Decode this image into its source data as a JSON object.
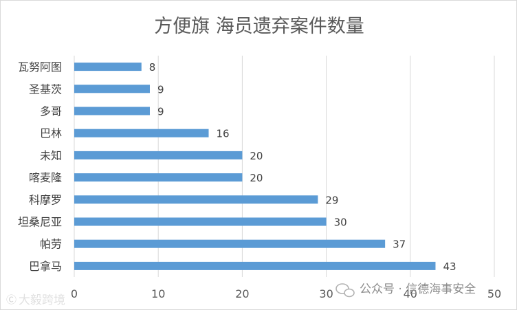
{
  "chart_data": {
    "type": "bar",
    "orientation": "horizontal",
    "title": "方便旗 海员遗弃案件数量",
    "categories": [
      "瓦努阿图",
      "圣基茨",
      "多哥",
      "巴林",
      "未知",
      "喀麦隆",
      "科摩罗",
      "坦桑尼亚",
      "帕劳",
      "巴拿马"
    ],
    "values": [
      8,
      9,
      9,
      16,
      20,
      20,
      29,
      30,
      37,
      43
    ],
    "xlim": [
      0,
      50
    ],
    "xticks": [
      0,
      10,
      20,
      30,
      40,
      50
    ],
    "grid": true,
    "legend": "none",
    "colors": {
      "bar": "#5b9bd5",
      "grid": "#d9d9d9"
    }
  },
  "watermarks": {
    "left": "大毅跨境",
    "right": "公众号 · 信德海事安全"
  }
}
